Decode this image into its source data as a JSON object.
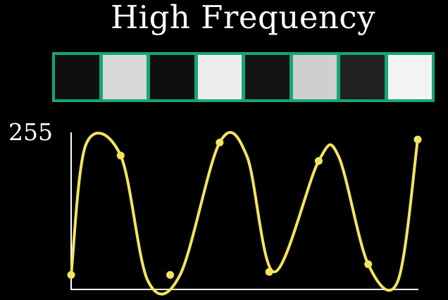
{
  "title": "High Frequency",
  "strip": {
    "pixels": [
      15,
      216,
      15,
      238,
      20,
      207,
      33,
      243
    ],
    "border_color": "#17a673"
  },
  "chart_data": {
    "type": "line",
    "ylim": [
      0,
      255
    ],
    "y_tick_labels": [
      "255"
    ],
    "curve_color": "#f5e35f",
    "x": [
      0,
      1,
      2,
      3,
      4,
      5,
      6,
      7
    ],
    "sample_values": [
      15,
      216,
      15,
      238,
      20,
      207,
      33,
      243
    ],
    "curve_x": [
      0,
      0.3,
      1.0,
      1.55,
      2.2,
      3.0,
      3.55,
      4.1,
      5.0,
      5.4,
      6.0,
      6.6,
      7.0
    ],
    "curve_y": [
      15,
      235,
      216,
      5,
      15,
      238,
      215,
      20,
      207,
      215,
      33,
      5,
      243
    ]
  }
}
